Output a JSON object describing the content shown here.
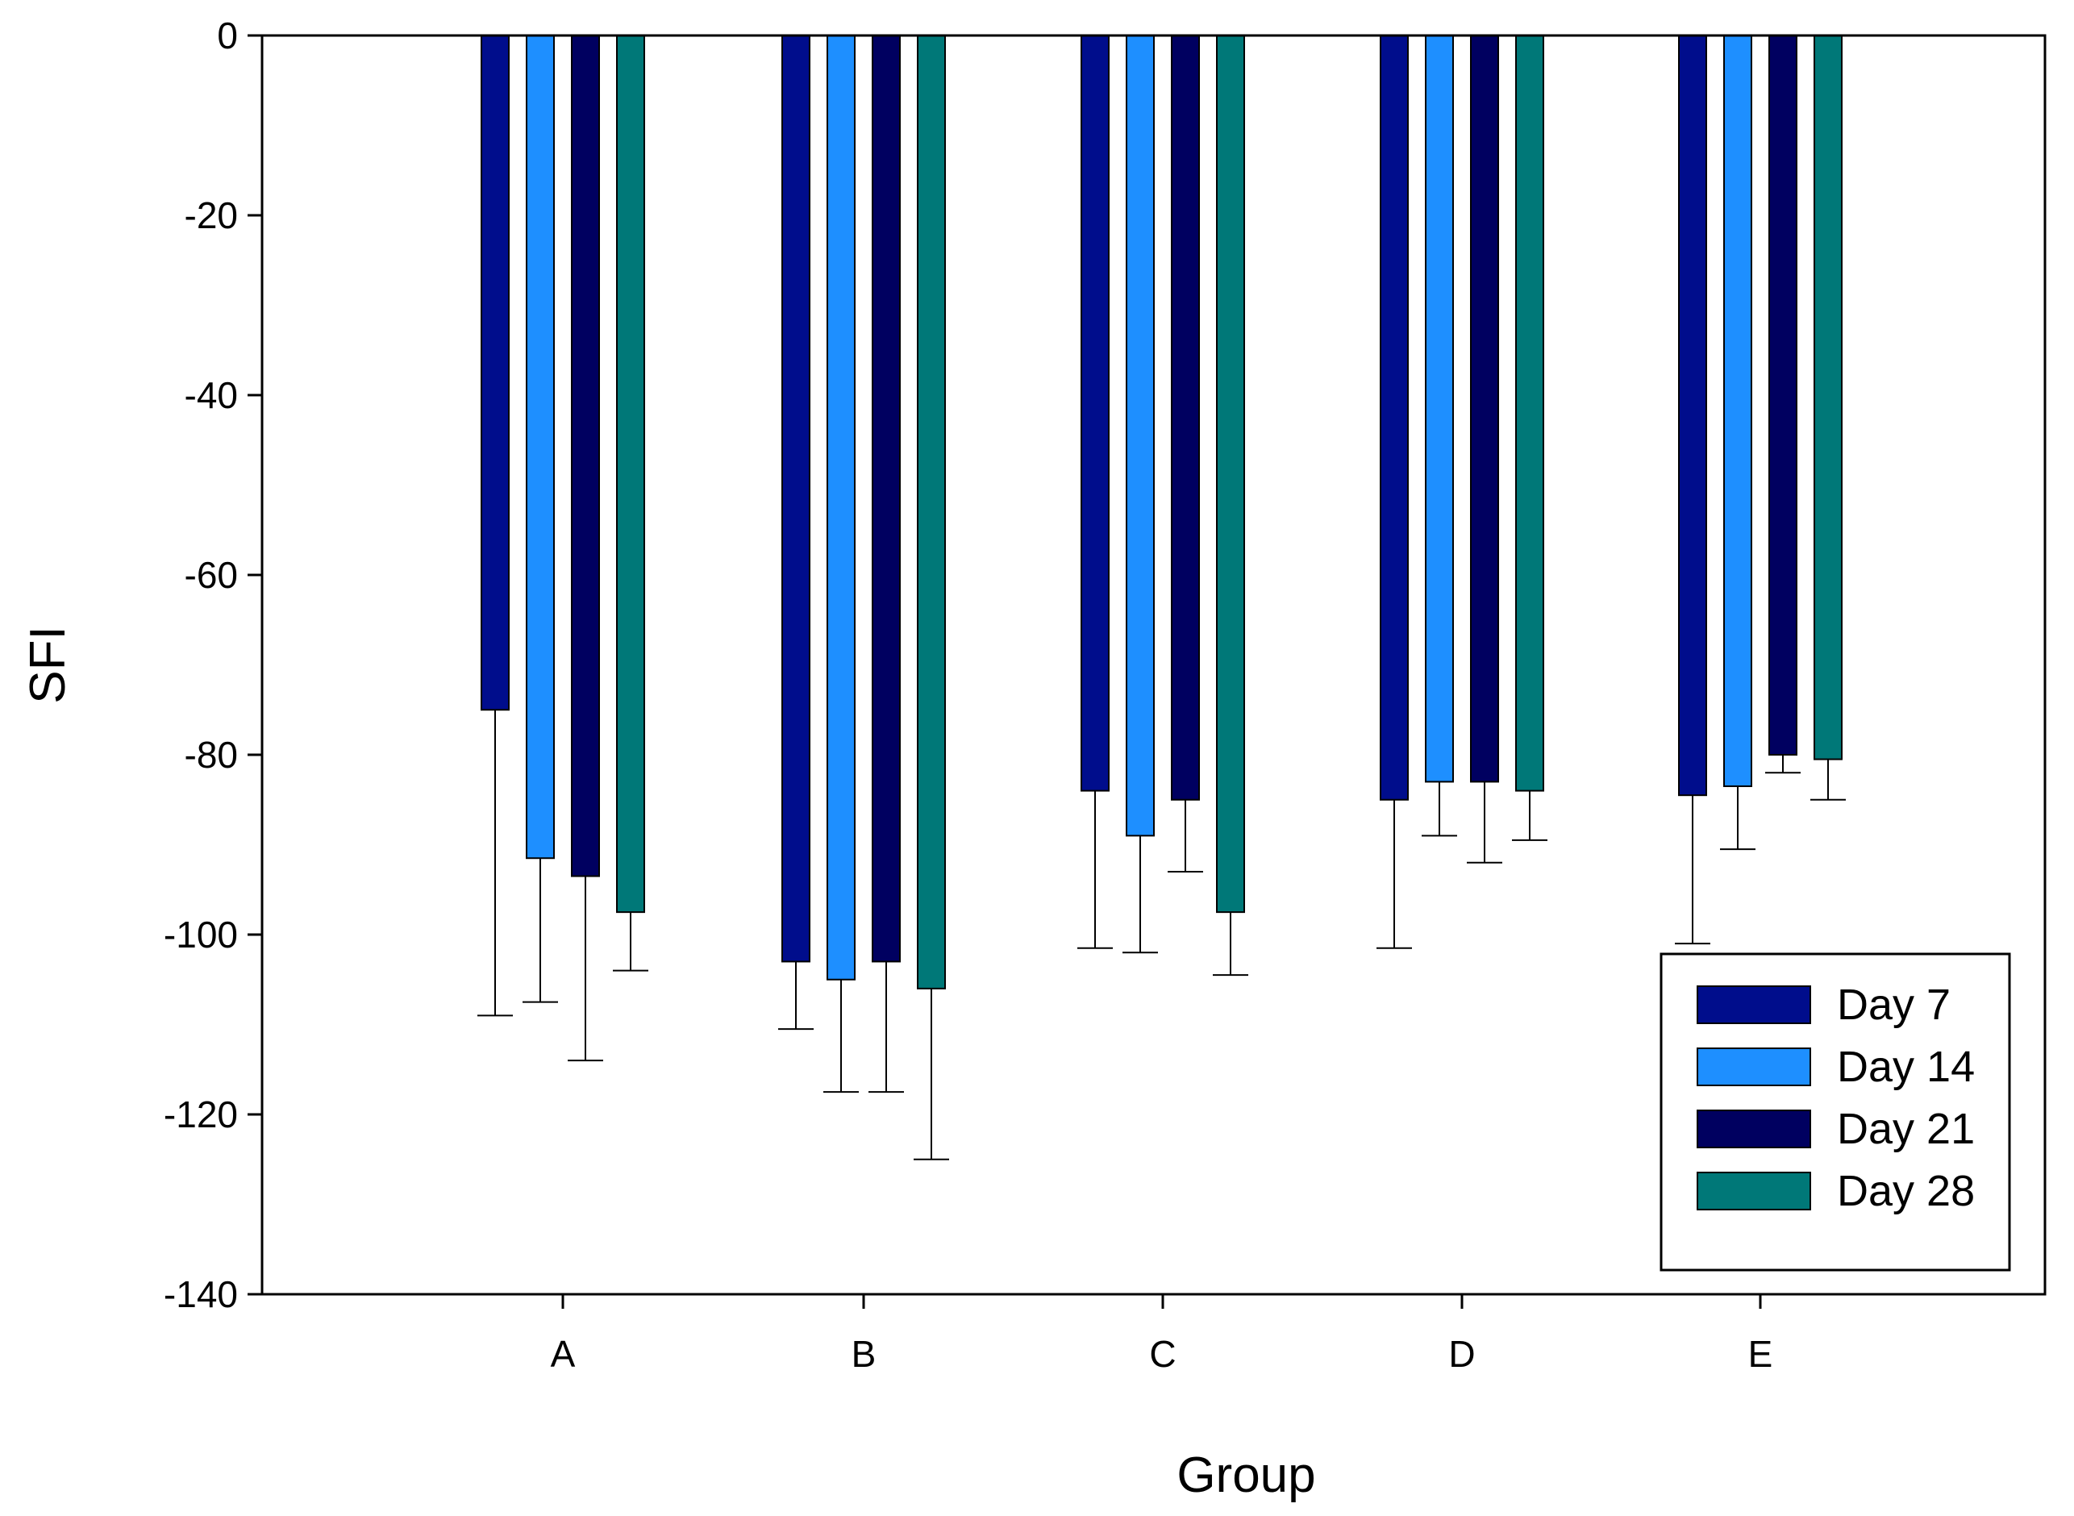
{
  "chart_data": {
    "type": "bar",
    "title": "",
    "xlabel": "Group",
    "ylabel": "SFI",
    "ylim": [
      -140,
      0
    ],
    "yticks": [
      0,
      -20,
      -40,
      -60,
      -80,
      -100,
      -120,
      -140
    ],
    "grid": false,
    "legend_position": "bottom-right",
    "categories": [
      "A",
      "B",
      "C",
      "D",
      "E"
    ],
    "series": [
      {
        "name": "Day 7",
        "color": "#000d8c",
        "values": [
          -75,
          -103,
          -84,
          -85,
          -84.5
        ],
        "errors": [
          34,
          7.5,
          17.5,
          16.5,
          16.5
        ]
      },
      {
        "name": "Day 14",
        "color": "#1e8fff",
        "values": [
          -91.5,
          -105,
          -89,
          -83,
          -83.5
        ],
        "errors": [
          16,
          12.5,
          13,
          6,
          7
        ]
      },
      {
        "name": "Day 21",
        "color": "#000060",
        "values": [
          -93.5,
          -103,
          -85,
          -83,
          -80
        ],
        "errors": [
          20.5,
          14.5,
          8,
          9,
          2
        ]
      },
      {
        "name": "Day 28",
        "color": "#007878",
        "values": [
          -97.5,
          -106,
          -97.5,
          -84,
          -80.5
        ],
        "errors": [
          6.5,
          19,
          7,
          5.5,
          4.5
        ]
      }
    ]
  }
}
